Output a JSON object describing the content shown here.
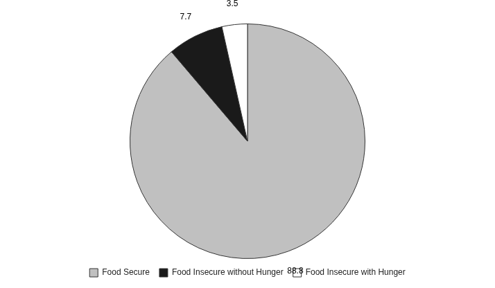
{
  "chart_data": {
    "type": "pie",
    "categories": [
      "Food Secure",
      "Food Insecure without Hunger",
      "Food Insecure with Hunger"
    ],
    "values": [
      88.8,
      7.7,
      3.5
    ],
    "colors": [
      "#c0c0c0",
      "#1a1a1a",
      "#ffffff"
    ],
    "data_labels": true,
    "legend": "bottom"
  }
}
